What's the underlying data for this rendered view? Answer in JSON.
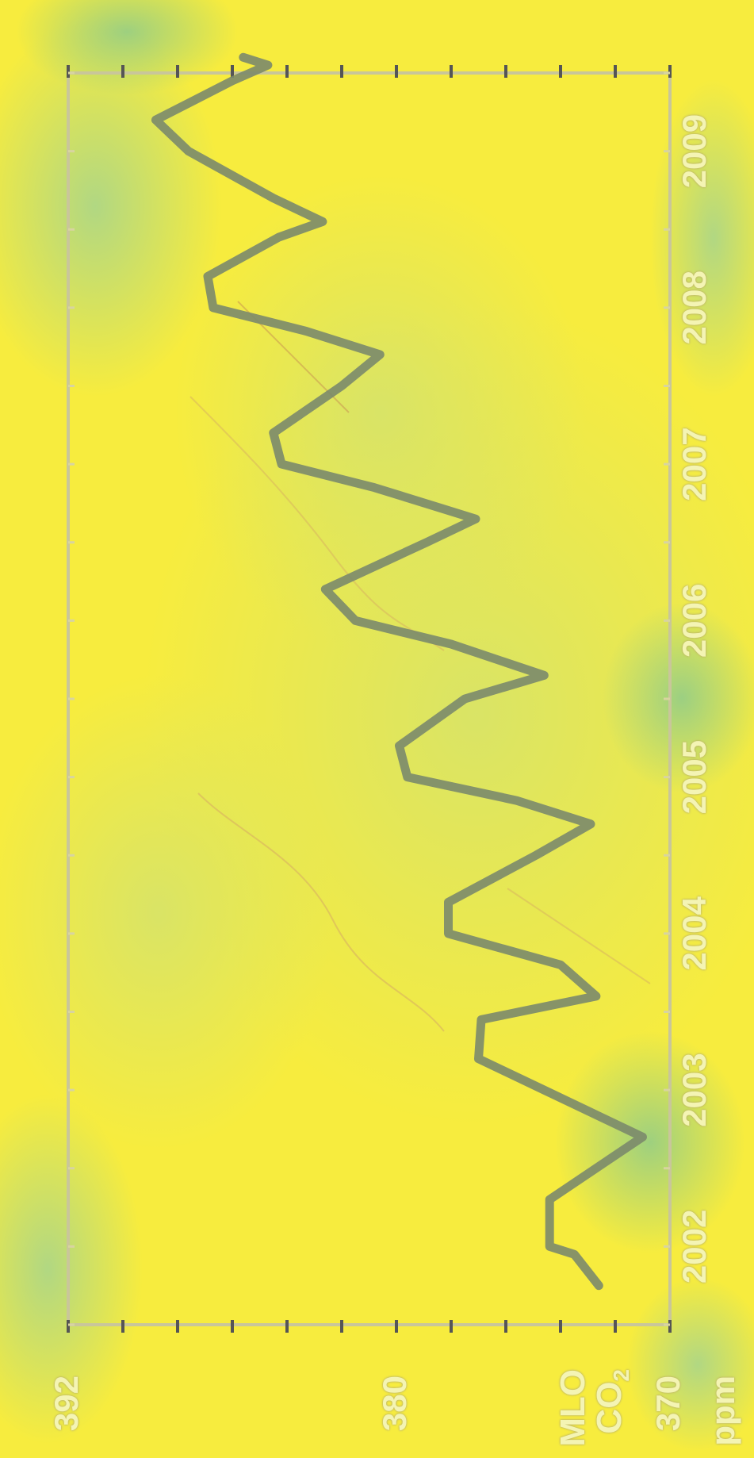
{
  "labels": {
    "variable": "MLO",
    "quantity": "CO",
    "quantity_sub": "2",
    "unit": "ppm"
  },
  "colors": {
    "background": "#f7ec3e",
    "ocean_tint": "#b9d77a",
    "curve": "#7b8a6c",
    "frame": "#c9c69a",
    "label": "#f4f4b4"
  },
  "chart_data": {
    "type": "line",
    "title": "",
    "xlabel": "",
    "ylabel": "CO2",
    "ylim": [
      370,
      392
    ],
    "xlim": [
      2001.5,
      2009.5
    ],
    "y_ticks": [
      392,
      380,
      370
    ],
    "x_ticks": [
      "2002",
      "2003",
      "2004",
      "2005",
      "2006",
      "2007",
      "2008",
      "2009"
    ],
    "x_tick_values": [
      2002,
      2003,
      2004,
      2005,
      2006,
      2007,
      2008,
      2009
    ],
    "grid": false,
    "series": [
      {
        "x": [
          2001.75,
          2001.95,
          2002.0,
          2002.3,
          2002.5,
          2002.7,
          2003.0,
          2003.2,
          2003.45,
          2003.6,
          2003.8,
          2004.0,
          2004.2,
          2004.5,
          2004.7,
          2004.85,
          2005.0,
          2005.2,
          2005.5,
          2005.65,
          2005.85,
          2006.0,
          2006.2,
          2006.5,
          2006.65,
          2006.85,
          2007.0,
          2007.2,
          2007.5,
          2007.7,
          2007.85,
          2008.0,
          2008.2,
          2008.45,
          2008.55,
          2008.7,
          2009.0,
          2009.2,
          2009.45,
          2009.55,
          2009.6
        ],
        "y": [
          372.6,
          373.5,
          374.4,
          374.4,
          372.7,
          371.0,
          374.6,
          377.0,
          376.9,
          372.7,
          374.0,
          378.1,
          378.1,
          374.9,
          372.9,
          375.6,
          379.6,
          379.9,
          377.5,
          374.6,
          378.0,
          381.5,
          382.6,
          378.9,
          377.1,
          380.8,
          384.2,
          384.5,
          382.0,
          380.6,
          383.3,
          386.7,
          386.9,
          384.3,
          382.7,
          384.5,
          387.6,
          388.8,
          386.0,
          384.7,
          385.6
        ]
      }
    ]
  }
}
